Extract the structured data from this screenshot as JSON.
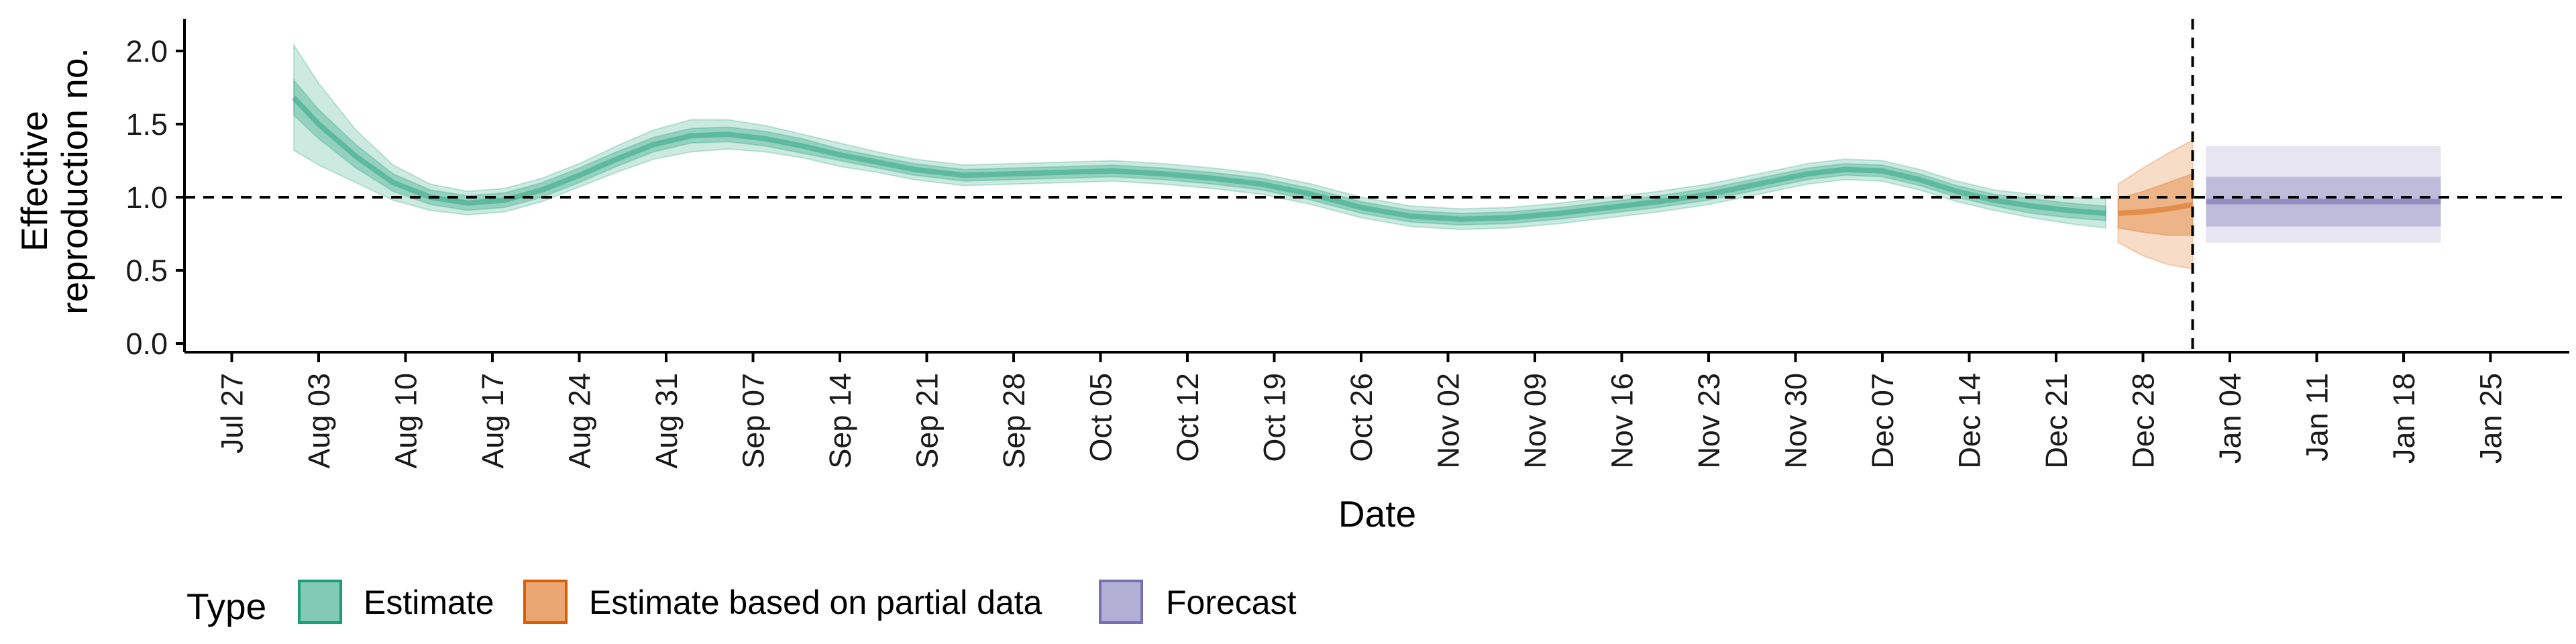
{
  "chart_data": {
    "type": "area",
    "title": "",
    "xlabel": "Date",
    "ylabel_lines": [
      "Effective",
      "reproduction no."
    ],
    "y_ticks": [
      "0.0",
      "0.5",
      "1.0",
      "1.5",
      "2.0"
    ],
    "ylim": [
      0,
      2.2
    ],
    "x_ticks": [
      "Jul 27",
      "Aug 03",
      "Aug 10",
      "Aug 17",
      "Aug 24",
      "Aug 31",
      "Sep 07",
      "Sep 14",
      "Sep 21",
      "Sep 28",
      "Oct 05",
      "Oct 12",
      "Oct 19",
      "Oct 26",
      "Nov 02",
      "Nov 09",
      "Nov 16",
      "Nov 23",
      "Nov 30",
      "Dec 07",
      "Dec 14",
      "Dec 21",
      "Dec 28",
      "Jan 04",
      "Jan 11",
      "Jan 18",
      "Jan 25"
    ],
    "reference_line_y": 1.0,
    "vertical_line_date": "Jan 01",
    "legend": {
      "title": "Type",
      "placement": "bottom",
      "items": [
        {
          "label": "Estimate",
          "color": "#1b9e77"
        },
        {
          "label": "Estimate based on partial data",
          "color": "#d95f02"
        },
        {
          "label": "Forecast",
          "color": "#7570b3"
        }
      ]
    },
    "series": [
      {
        "name": "Estimate",
        "color": "#1b9e77",
        "dates": [
          "Aug 01",
          "Aug 03",
          "Aug 06",
          "Aug 09",
          "Aug 12",
          "Aug 15",
          "Aug 18",
          "Aug 21",
          "Aug 24",
          "Aug 27",
          "Aug 30",
          "Sep 02",
          "Sep 05",
          "Sep 08",
          "Sep 11",
          "Sep 14",
          "Sep 17",
          "Sep 20",
          "Sep 24",
          "Sep 28",
          "Oct 02",
          "Oct 06",
          "Oct 10",
          "Oct 14",
          "Oct 18",
          "Oct 22",
          "Oct 26",
          "Oct 30",
          "Nov 03",
          "Nov 07",
          "Nov 11",
          "Nov 15",
          "Nov 19",
          "Nov 23",
          "Nov 27",
          "Dec 01",
          "Dec 04",
          "Dec 07",
          "Dec 10",
          "Dec 13",
          "Dec 16",
          "Dec 19",
          "Dec 22",
          "Dec 25"
        ],
        "median": [
          1.68,
          1.5,
          1.28,
          1.1,
          1.0,
          0.96,
          0.98,
          1.05,
          1.15,
          1.26,
          1.36,
          1.42,
          1.43,
          1.4,
          1.35,
          1.29,
          1.24,
          1.19,
          1.15,
          1.16,
          1.17,
          1.18,
          1.16,
          1.13,
          1.09,
          1.02,
          0.93,
          0.87,
          0.85,
          0.86,
          0.89,
          0.93,
          0.97,
          1.02,
          1.09,
          1.16,
          1.19,
          1.18,
          1.12,
          1.04,
          0.98,
          0.94,
          0.91,
          0.89
        ],
        "inner_half_width": [
          0.12,
          0.1,
          0.08,
          0.06,
          0.05,
          0.05,
          0.05,
          0.05,
          0.05,
          0.05,
          0.05,
          0.05,
          0.05,
          0.05,
          0.05,
          0.04,
          0.04,
          0.04,
          0.04,
          0.04,
          0.04,
          0.04,
          0.04,
          0.04,
          0.04,
          0.04,
          0.04,
          0.04,
          0.04,
          0.04,
          0.04,
          0.04,
          0.04,
          0.04,
          0.04,
          0.04,
          0.04,
          0.04,
          0.04,
          0.04,
          0.04,
          0.05,
          0.05,
          0.05
        ],
        "outer_half_width": [
          0.36,
          0.28,
          0.18,
          0.12,
          0.09,
          0.08,
          0.08,
          0.08,
          0.08,
          0.09,
          0.1,
          0.11,
          0.1,
          0.09,
          0.08,
          0.08,
          0.07,
          0.07,
          0.07,
          0.07,
          0.07,
          0.07,
          0.07,
          0.07,
          0.07,
          0.07,
          0.07,
          0.07,
          0.07,
          0.07,
          0.07,
          0.07,
          0.07,
          0.07,
          0.07,
          0.07,
          0.07,
          0.07,
          0.07,
          0.07,
          0.07,
          0.08,
          0.09,
          0.1
        ]
      },
      {
        "name": "Estimate based on partial data",
        "color": "#d95f02",
        "dates": [
          "Dec 26",
          "Dec 28",
          "Dec 30",
          "Jan 01"
        ],
        "median": [
          0.89,
          0.9,
          0.92,
          0.95
        ],
        "inner_half_width": [
          0.1,
          0.14,
          0.18,
          0.21
        ],
        "outer_half_width": [
          0.2,
          0.3,
          0.38,
          0.44
        ]
      },
      {
        "name": "Forecast",
        "color": "#7570b3",
        "start": "Jan 01",
        "end": "Jan 21",
        "median": 0.97,
        "inner": [
          0.8,
          1.14
        ],
        "outer": [
          0.69,
          1.35
        ]
      }
    ]
  }
}
